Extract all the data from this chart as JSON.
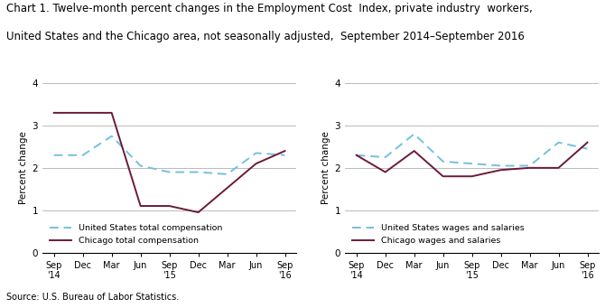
{
  "title_line1": "Chart 1. Twelve-month percent changes in the Employment Cost  Index, private industry  workers,",
  "title_line2": "United States and the Chicago area, not seasonally adjusted,  September 2014–September 2016",
  "title_fontsize": 8.5,
  "source": "Source: U.S. Bureau of Labor Statistics.",
  "x_labels": [
    "Sep\n'14",
    "Dec",
    "Mar",
    "Jun",
    "Sep\n'15",
    "Dec",
    "Mar",
    "Jun",
    "Sep\n'16"
  ],
  "ylim": [
    0.0,
    4.0
  ],
  "yticks": [
    0.0,
    1.0,
    2.0,
    3.0,
    4.0
  ],
  "ylabel": "Percent change",
  "left_chart": {
    "us_total_comp": [
      2.3,
      2.3,
      2.75,
      2.05,
      1.9,
      1.9,
      1.85,
      2.35,
      2.3
    ],
    "chicago_total_comp": [
      3.3,
      3.3,
      3.3,
      1.1,
      1.1,
      0.95,
      null,
      2.1,
      2.4
    ],
    "legend1": "United States total compensation",
    "legend2": "Chicago total compensation"
  },
  "right_chart": {
    "us_wages_salaries": [
      2.3,
      2.25,
      2.8,
      2.15,
      2.1,
      2.05,
      2.05,
      2.6,
      2.45
    ],
    "chicago_wages_salaries": [
      2.3,
      1.9,
      2.4,
      1.8,
      1.8,
      1.95,
      2.0,
      2.0,
      2.6
    ],
    "legend1": "United States wages and salaries",
    "legend2": "Chicago wages and salaries"
  },
  "us_color": "#74c0e0",
  "chicago_color": "#6b1a3a",
  "grid_color": "#b0b0b0",
  "background_color": "#ffffff"
}
